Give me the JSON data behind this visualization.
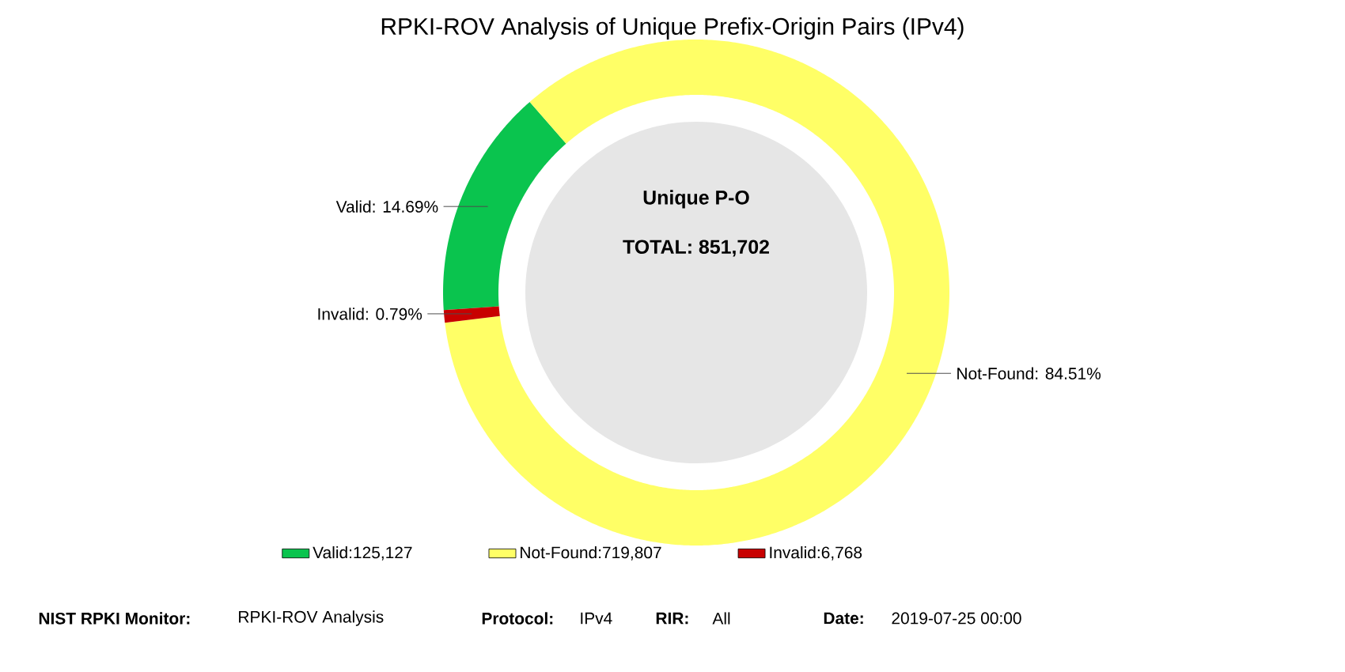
{
  "chart_data": {
    "type": "donut",
    "title": "RPKI-ROV Analysis of Unique Prefix-Origin Pairs (IPv4)",
    "categories": [
      "Valid:125,127",
      "Not-Found:719,807",
      "Invalid:6,768"
    ],
    "values": [
      14.69,
      84.51,
      0.79
    ],
    "colors": [
      "#0ac44e",
      "#ffff66",
      "#c80000"
    ],
    "value_labels": [
      "Valid: 14.69%",
      "Not-Found: 84.51%",
      "Invalid: 0.79%"
    ],
    "legend": "bottom",
    "annotations": [
      "Unique P-O",
      "TOTAL: 851,702",
      "NIST RPKI Monitor:",
      "RPKI-ROV Analysis",
      "Protocol:",
      "IPv4",
      "RIR:",
      "All",
      "Date:",
      "2019-07-25 00:00"
    ]
  }
}
